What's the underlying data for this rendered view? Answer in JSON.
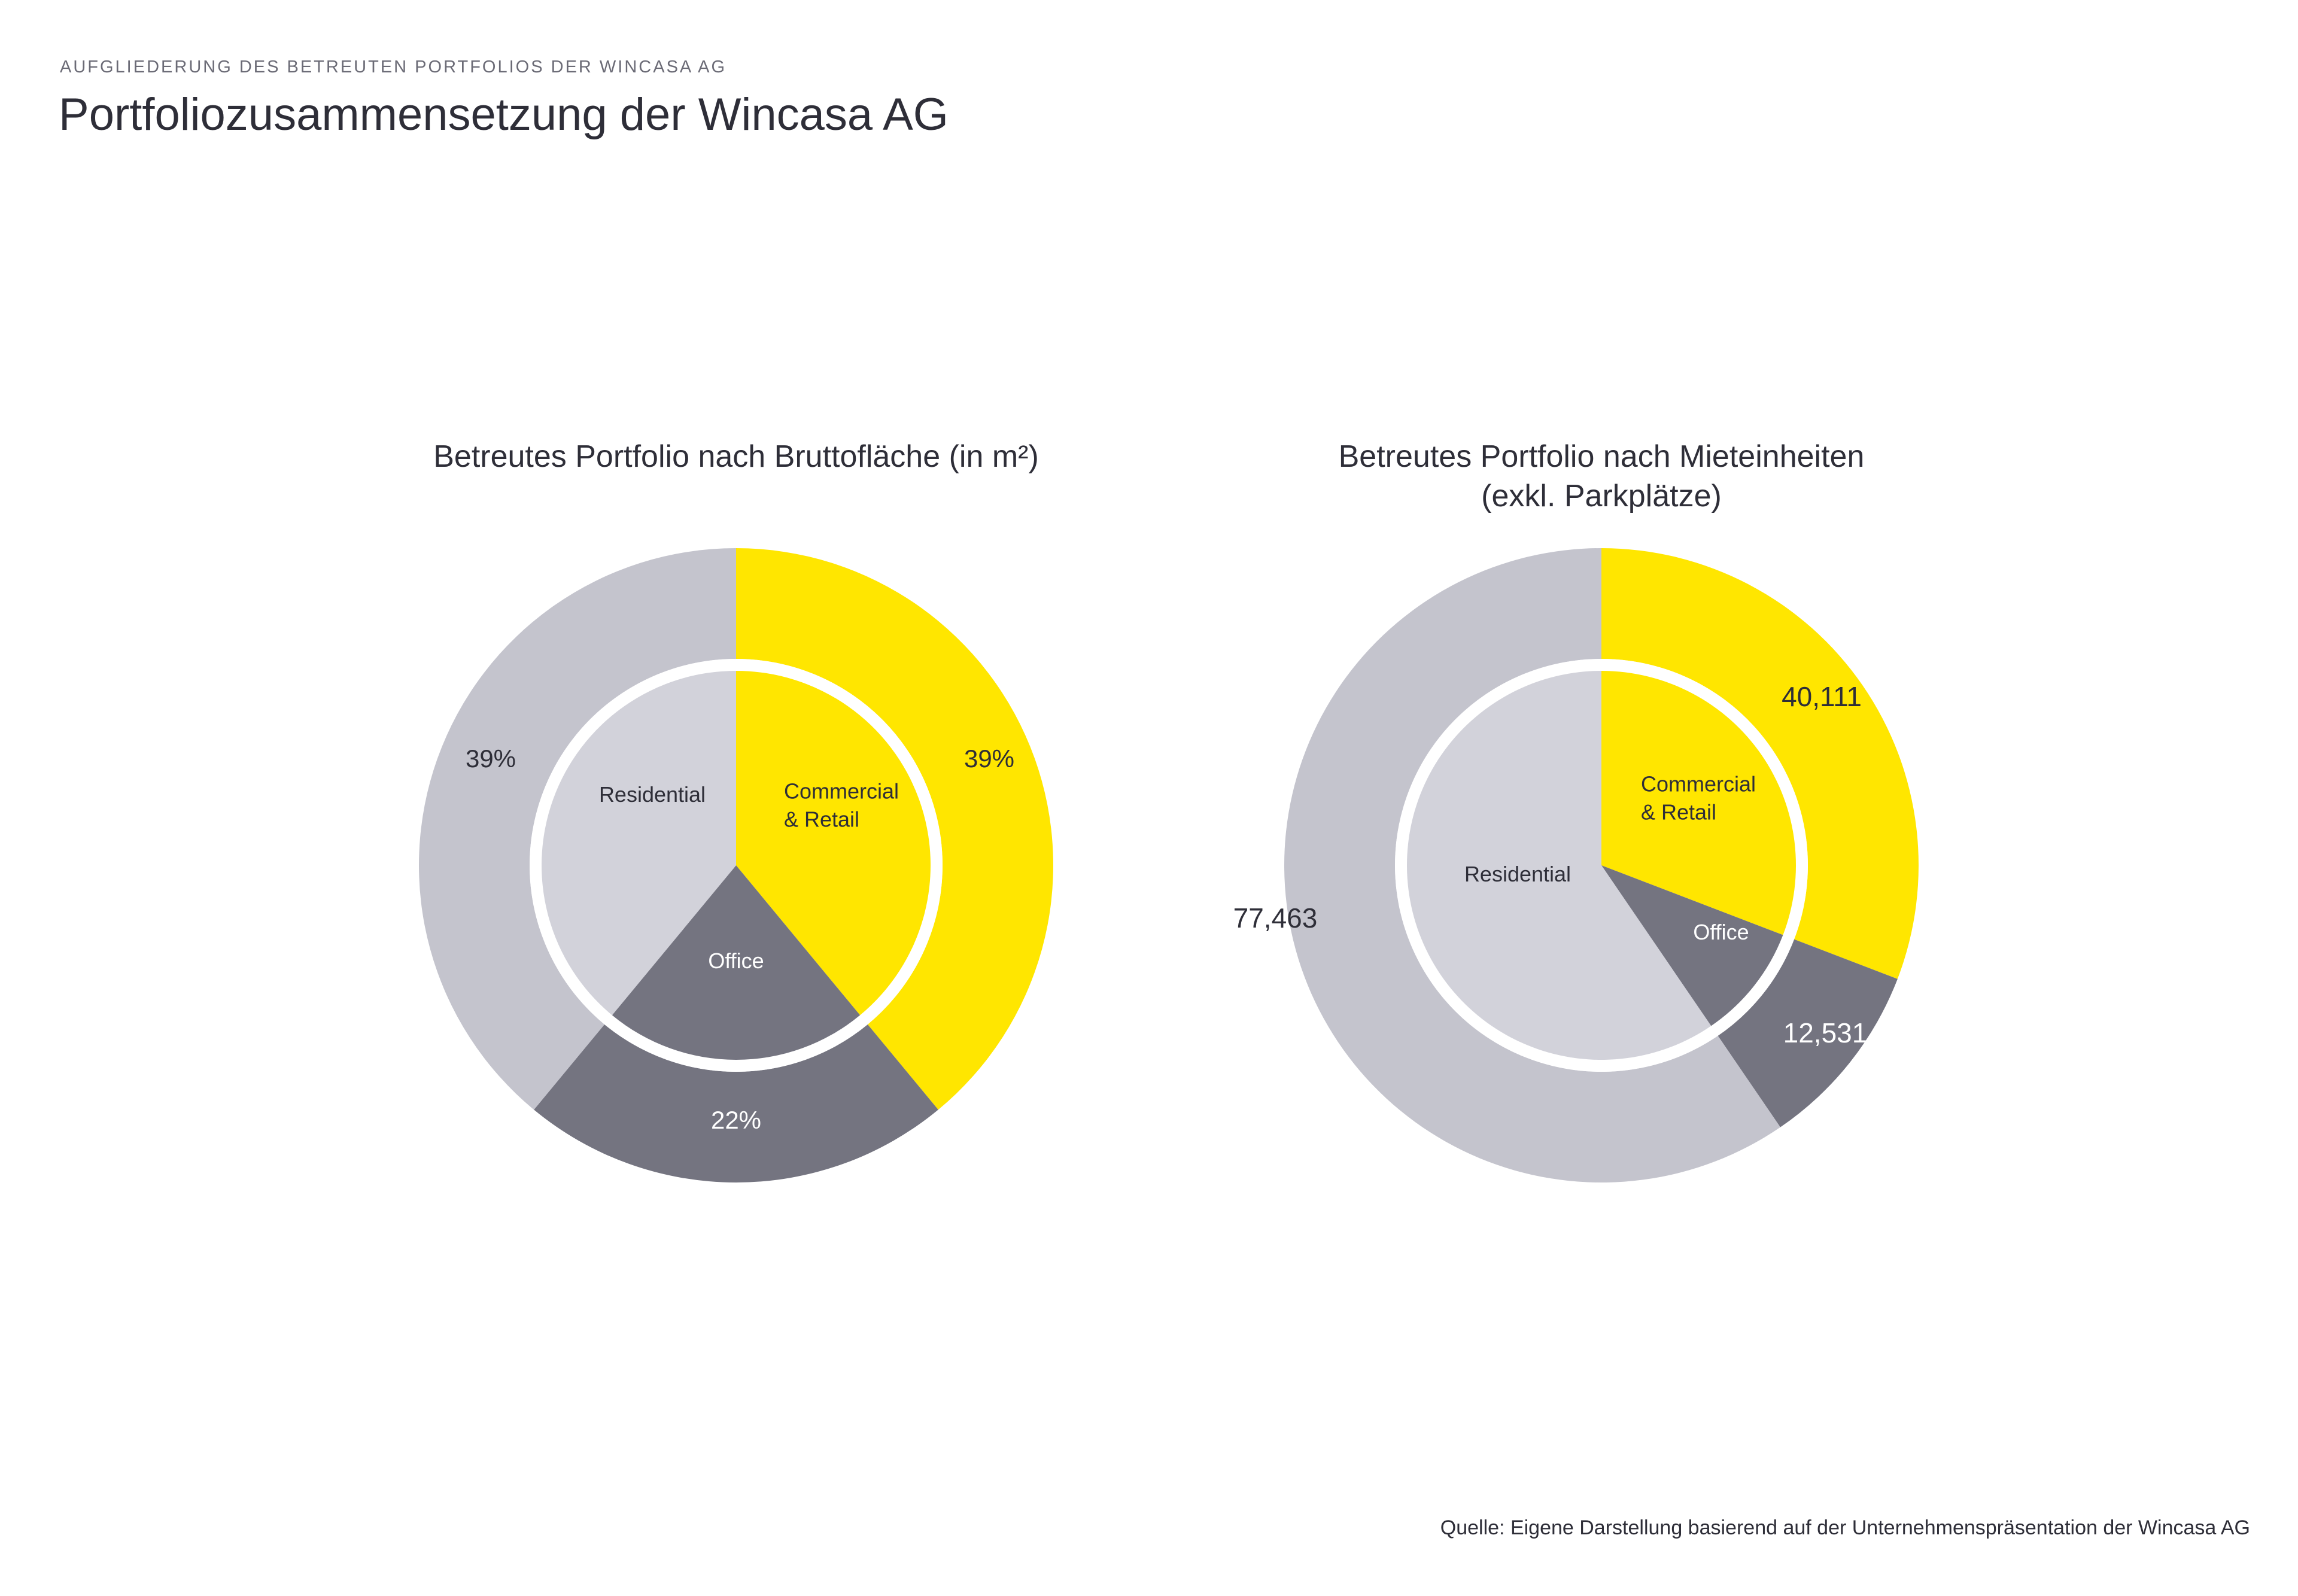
{
  "header": {
    "eyebrow": "AUFGLIEDERUNG DES BETREUTEN PORTFOLIOS DER WINCASA AG",
    "title": "Portfoliozusammensetzung der Wincasa AG"
  },
  "colors": {
    "commercial": "#ffe600",
    "office_outer": "#747480",
    "office_inner": "#747480",
    "residential_outer": "#c4c4cd",
    "residential_inner": "#d2d2da",
    "gap": "#ffffff",
    "dark_text": "#2e2e38",
    "light_text": "#ffffff"
  },
  "chart_data": [
    {
      "type": "pie",
      "title": "Betreutes Portfolio nach Bruttofläche (in m²)",
      "categories": [
        "Commercial & Retail",
        "Office",
        "Residential"
      ],
      "inner_labels": [
        "Commercial\n& Retail",
        "Office",
        "Residential"
      ],
      "values": [
        39,
        22,
        39
      ],
      "value_labels": [
        "39%",
        "22%",
        "39%"
      ],
      "unit": "%"
    },
    {
      "type": "pie",
      "title": "Betreutes Portfolio nach Mieteinheiten\n(exkl. Parkplätze)",
      "categories": [
        "Commercial & Retail",
        "Office",
        "Residential"
      ],
      "inner_labels": [
        "Commercial\n& Retail",
        "Office",
        "Residential"
      ],
      "values": [
        40111,
        12531,
        77463
      ],
      "value_labels": [
        "40,111",
        "12,531",
        "77,463"
      ],
      "unit": "Mieteinheiten"
    }
  ],
  "footer": {
    "source": "Quelle: Eigene Darstellung basierend auf der Unternehmenspräsentation der Wincasa AG"
  }
}
